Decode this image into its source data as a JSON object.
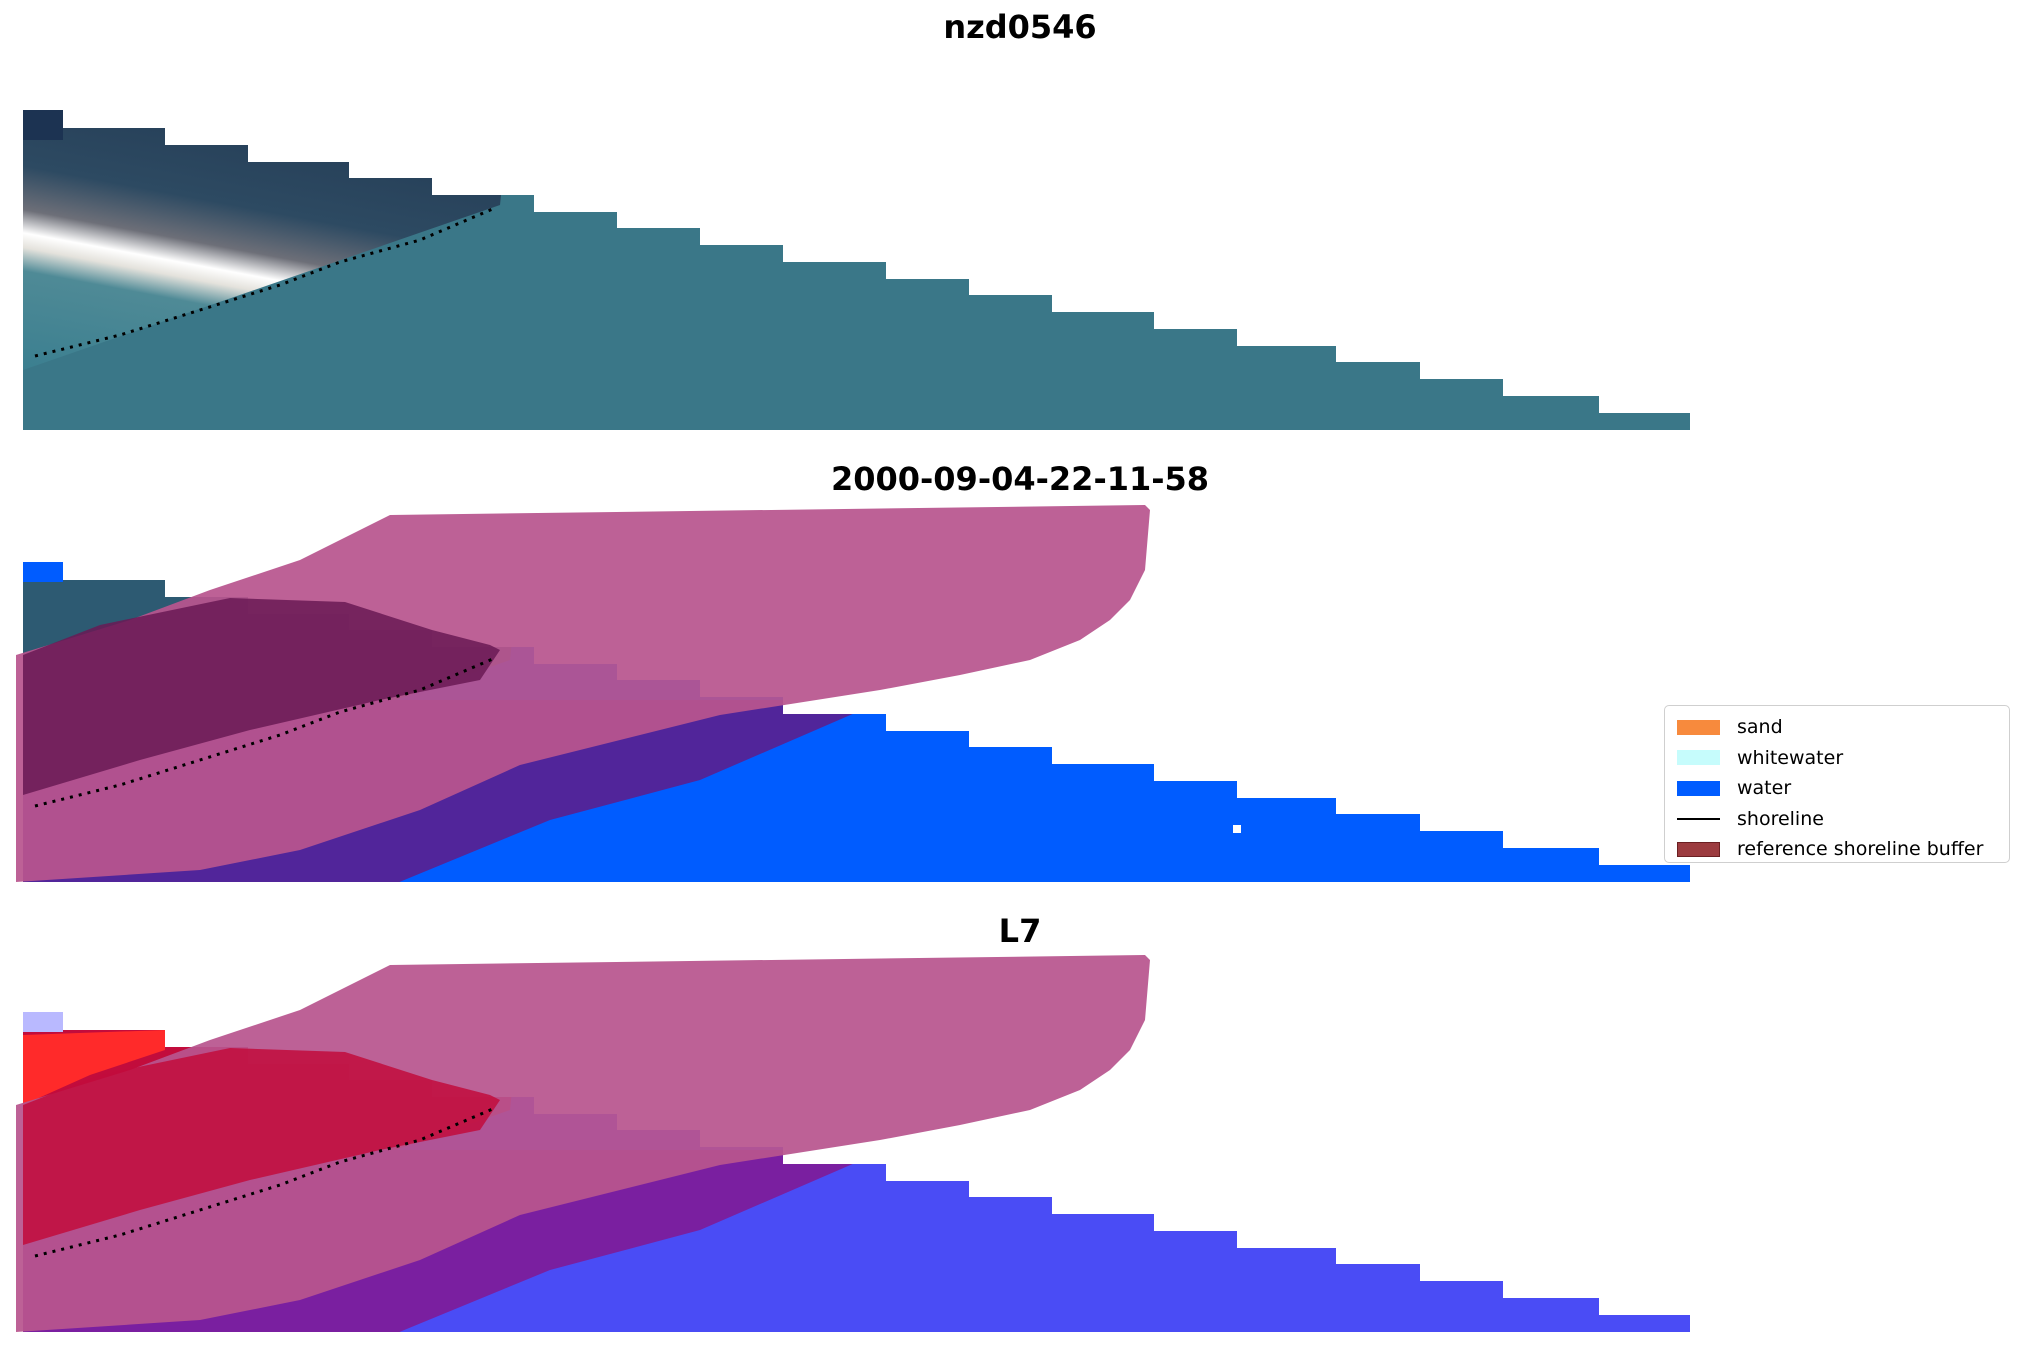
{
  "panels": [
    {
      "title": "nzd0546"
    },
    {
      "title": "2000-09-04-22-11-58"
    },
    {
      "title": "L7"
    }
  ],
  "legend": {
    "items": [
      {
        "label": "sand",
        "color": "#f78a3d"
      },
      {
        "label": "whitewater",
        "color": "#c6fcfc"
      },
      {
        "label": "water",
        "color": "#005cff"
      },
      {
        "label": "shoreline",
        "color": "#000000"
      },
      {
        "label": "reference shoreline buffer",
        "color": "#9c3b3f"
      }
    ]
  },
  "colors": {
    "buffer": "#b8558e",
    "water": "#005cff",
    "dark_water": "#2d5a72",
    "turquoise": "#3b7f90",
    "purple_overlay": "#51259a",
    "red_overlay": "#c20c3c",
    "violet_overlay": "#7a1fa0",
    "blue_overlay": "#4a4cf5"
  }
}
